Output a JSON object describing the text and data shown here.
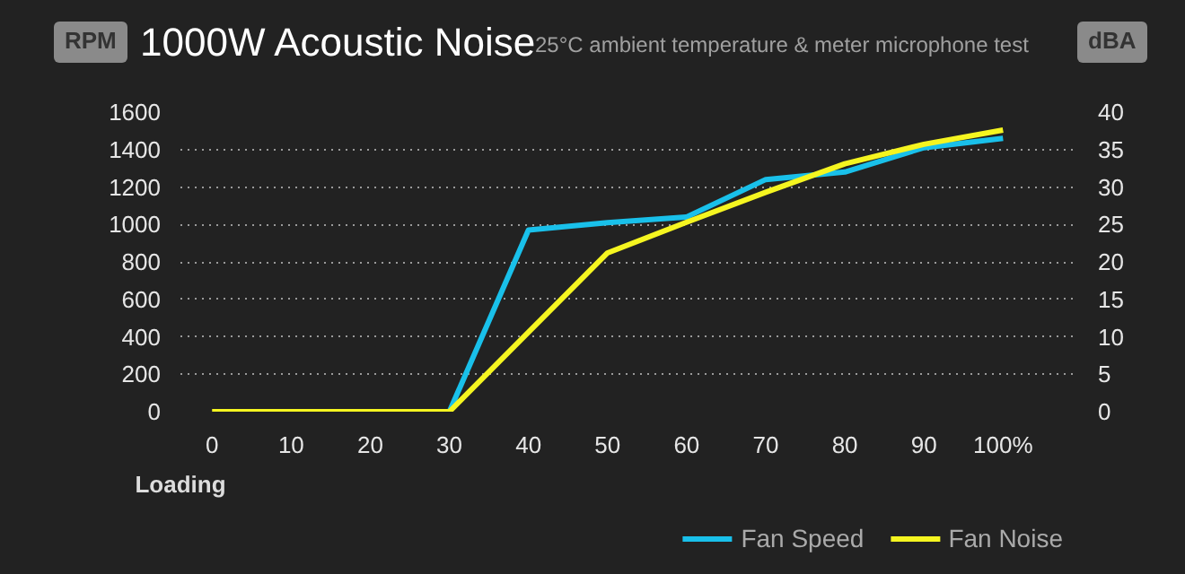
{
  "chart_data": {
    "type": "line",
    "title": "1000W Acoustic Noise",
    "subtitle": "25°C ambient temperature & meter microphone test",
    "xlabel": "Loading",
    "ylabel": "RPM",
    "y2label": "dBA",
    "categories": [
      "0",
      "10",
      "20",
      "30",
      "40",
      "50",
      "60",
      "70",
      "80",
      "90",
      "100%"
    ],
    "series": [
      {
        "name": "Fan Speed",
        "color": "#19c0ea",
        "values": [
          null,
          null,
          null,
          0,
          970,
          1010,
          1040,
          1240,
          1280,
          1410,
          1460
        ]
      },
      {
        "name": "Fan Noise",
        "color": "#f5f520",
        "axis": "y2",
        "values": [
          0,
          0,
          0,
          0,
          10.6,
          21.2,
          25.3,
          29.3,
          33.1,
          35.7,
          37.6
        ]
      }
    ],
    "ylim": [
      0,
      1600
    ],
    "yticks": [
      0,
      200,
      400,
      600,
      800,
      1000,
      1200,
      1400,
      1600
    ],
    "y2lim": [
      0,
      40
    ],
    "y2ticks": [
      0,
      5,
      10,
      15,
      20,
      25,
      30,
      35,
      40
    ],
    "grid": "y",
    "legend": "bottom right",
    "marker": "none",
    "line_style": "solid"
  }
}
